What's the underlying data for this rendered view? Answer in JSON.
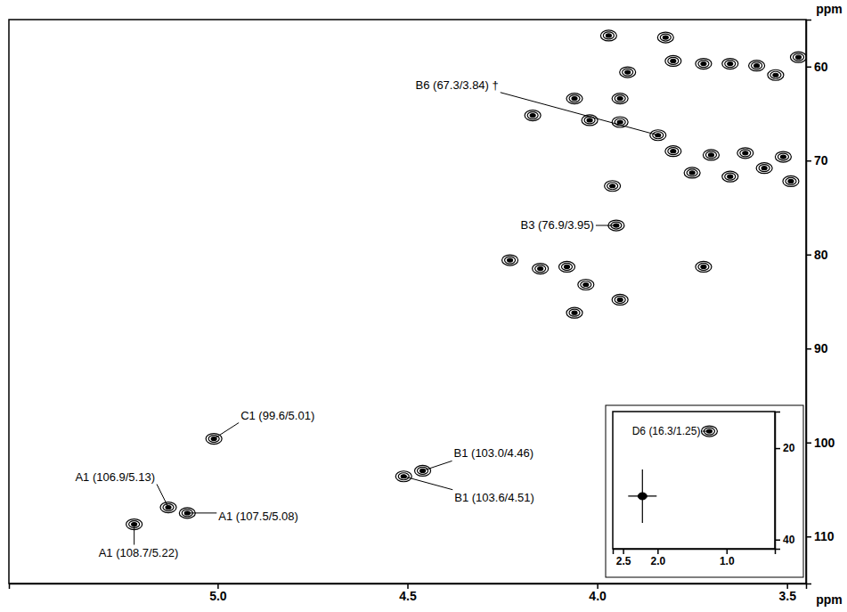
{
  "chart_data": [
    {
      "type": "scatter",
      "x_label": "ppm",
      "y_label": "ppm",
      "color": "#000000",
      "marker": "contour",
      "xlim": [
        5.55,
        3.45
      ],
      "ylim": [
        55,
        115
      ],
      "xticks": [
        {
          "value": 5,
          "label": "5.0"
        },
        4.5,
        {
          "value": 4,
          "label": "4.0"
        },
        3.5
      ],
      "yticks": [
        60,
        70,
        80,
        90,
        100,
        110
      ],
      "x": [
        3.97,
        3.82,
        3.8,
        3.72,
        3.65,
        3.58,
        3.53,
        3.47,
        3.92,
        4.06,
        3.94,
        4.17,
        4.02,
        3.94,
        3.8,
        3.7,
        3.61,
        3.51,
        3.75,
        3.65,
        3.56,
        3.49,
        3.96,
        4.23,
        4.15,
        4.08,
        4.03,
        3.94,
        3.72,
        4.06
      ],
      "values": [
        56.7,
        56.9,
        59.4,
        59.7,
        59.7,
        59.9,
        60.9,
        59.0,
        60.6,
        63.4,
        63.4,
        65.2,
        65.7,
        65.9,
        69.0,
        69.4,
        69.2,
        69.6,
        71.3,
        71.7,
        70.8,
        72.2,
        72.7,
        80.6,
        81.5,
        81.3,
        83.2,
        84.8,
        81.3,
        86.2
      ],
      "annotations": [
        {
          "text": "A1 (108.7/5.22)",
          "x": 5.22,
          "y": 108.7
        },
        {
          "text": "A1 (106.9/5.13)",
          "x": 5.13,
          "y": 106.9
        },
        {
          "text": "A1 (107.5/5.08)",
          "x": 5.08,
          "y": 107.5
        },
        {
          "text": "C1 (99.6/5.01)",
          "x": 5.01,
          "y": 99.6
        },
        {
          "text": "B1 (103.0/4.46)",
          "x": 4.46,
          "y": 103.0
        },
        {
          "text": "B1 (103.6/4.51)",
          "x": 4.51,
          "y": 103.6
        },
        {
          "text": "B6 (67.3/3.84) †",
          "x": 3.84,
          "y": 67.3
        },
        {
          "text": "B3 (76.9/3.95)",
          "x": 3.95,
          "y": 76.9
        }
      ]
    },
    {
      "type": "scatter",
      "color": "#000000",
      "marker": "cross",
      "xlim": [
        2.65,
        0.3
      ],
      "ylim": [
        12,
        42
      ],
      "xticks": [
        2.5,
        {
          "value": 2,
          "label": "2.0"
        },
        {
          "value": 1,
          "label": "1.0"
        }
      ],
      "yticks": [
        20,
        40
      ],
      "x": [
        2.22
      ],
      "values": [
        30.5
      ],
      "annotations": [
        {
          "text": "D6 (16.3/1.25)",
          "x": 1.25,
          "y": 16.3
        }
      ]
    }
  ]
}
